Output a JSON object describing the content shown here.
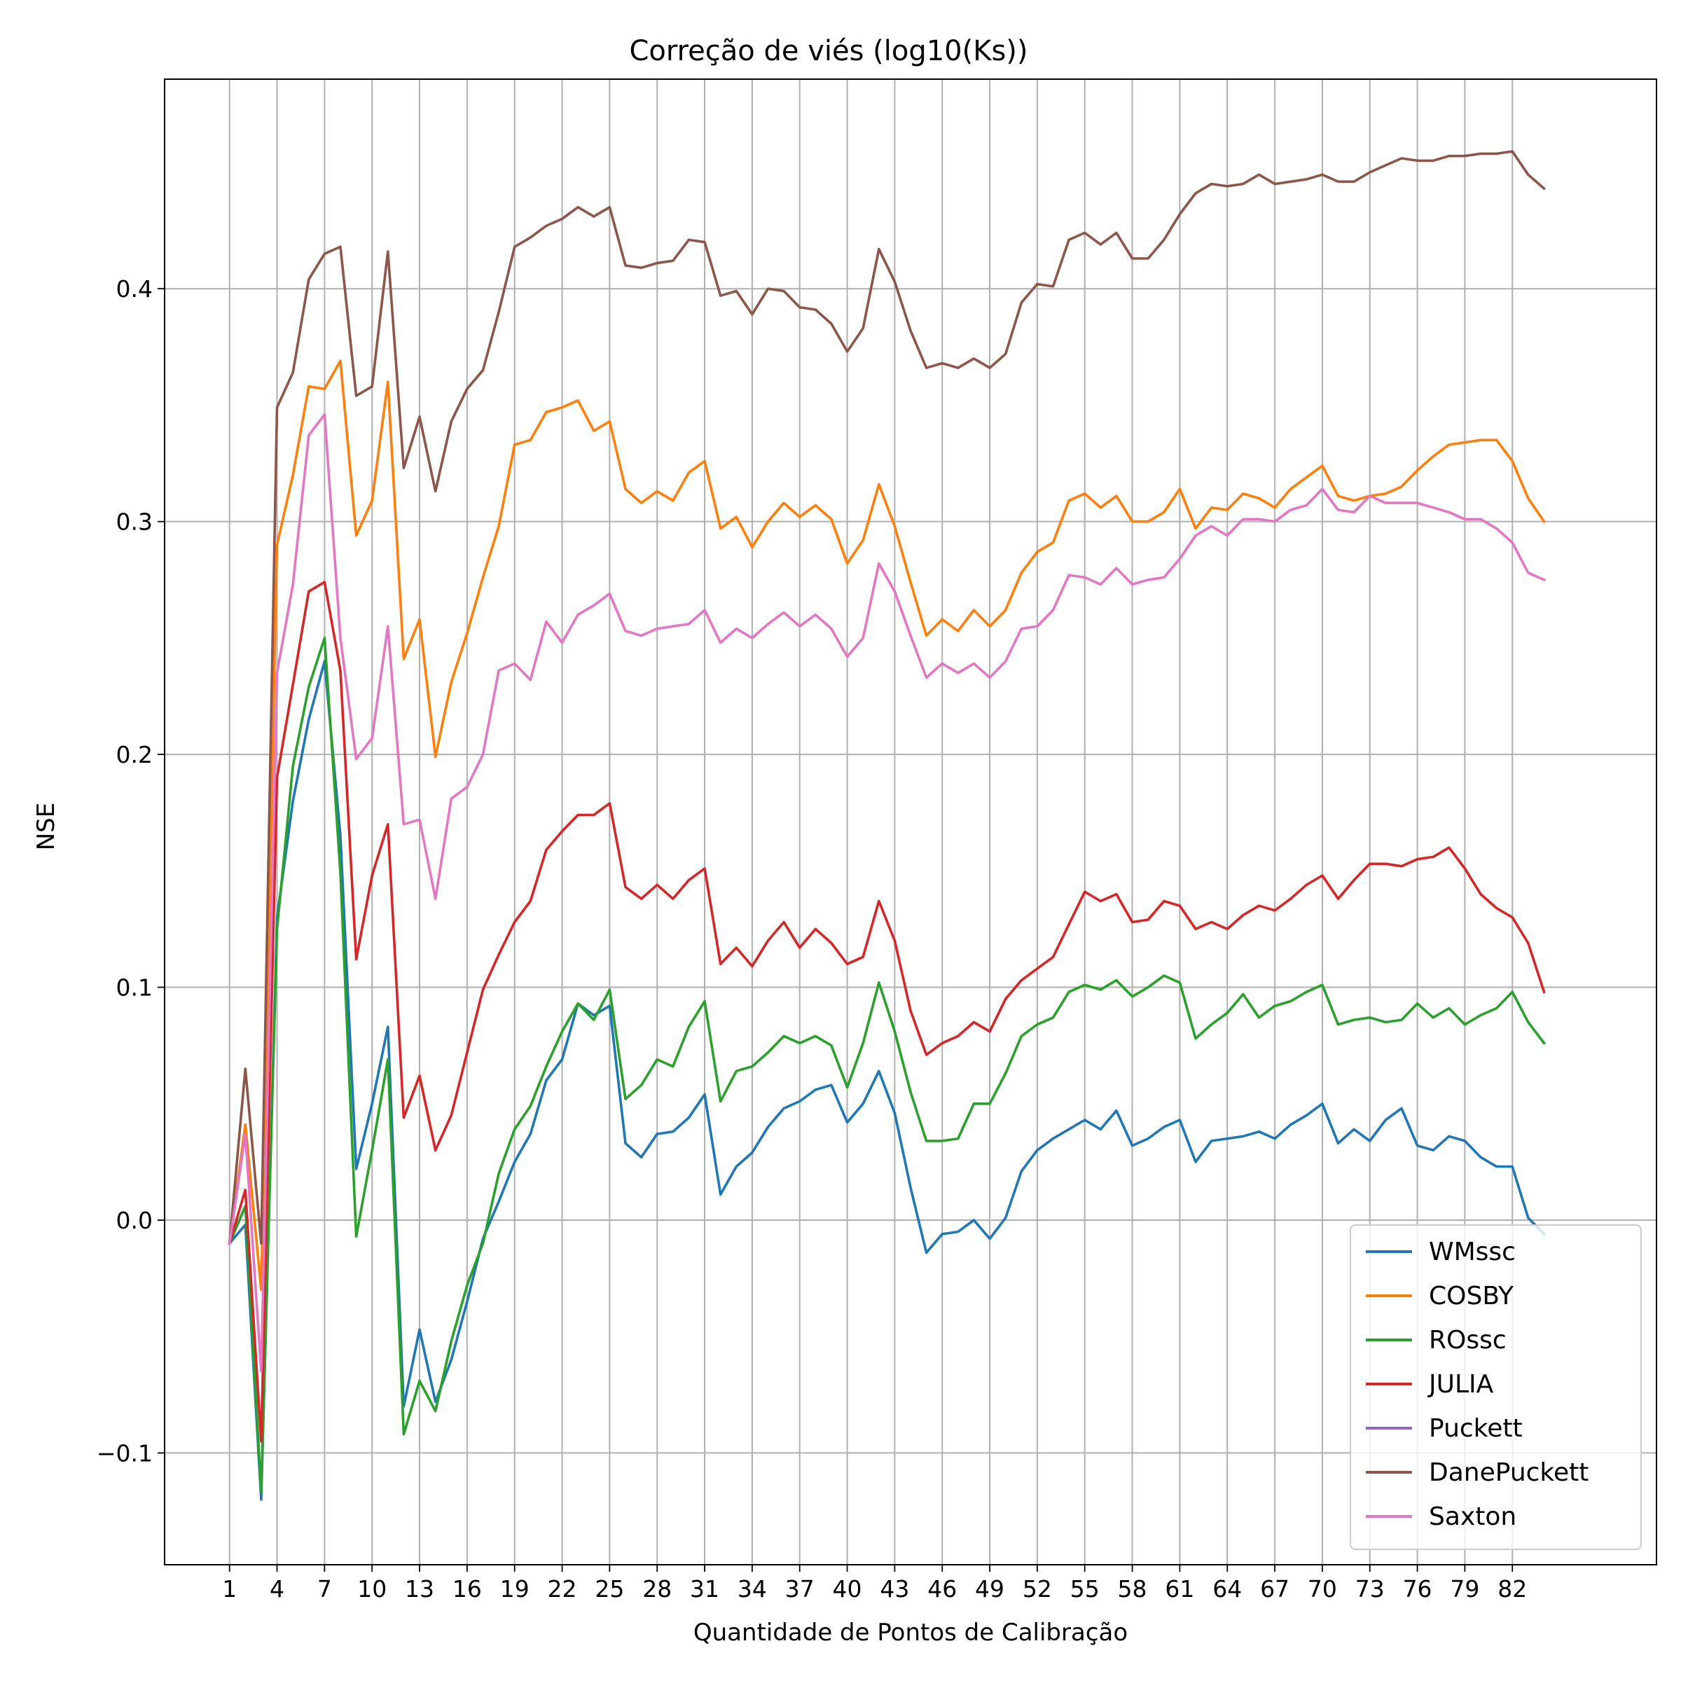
{
  "chart_data": {
    "type": "line",
    "title": "Correção de viés (log10(Ks))",
    "xlabel": "Quantidade de Pontos de Calibração",
    "ylabel": "NSE",
    "xlim": [
      -3.1,
      91.1
    ],
    "ylim": [
      -0.148,
      0.49
    ],
    "x_ticks": [
      1,
      4,
      7,
      10,
      13,
      16,
      19,
      22,
      25,
      28,
      31,
      34,
      37,
      40,
      43,
      46,
      49,
      52,
      55,
      58,
      61,
      64,
      67,
      70,
      73,
      76,
      79,
      82
    ],
    "y_ticks": [
      {
        "value": -0.1,
        "label": "−0.1"
      },
      {
        "value": 0.0,
        "label": "0.0"
      },
      {
        "value": 0.1,
        "label": "0.1"
      },
      {
        "value": 0.2,
        "label": "0.2"
      },
      {
        "value": 0.3,
        "label": "0.3"
      },
      {
        "value": 0.4,
        "label": "0.4"
      }
    ],
    "grid": true,
    "legend_position": "lower-right",
    "x_start": 1,
    "series": [
      {
        "name": "WMssc",
        "color": "#1f77b4",
        "values": [
          -0.01,
          -0.002,
          -0.12,
          0.13,
          0.18,
          0.215,
          0.24,
          0.165,
          0.022,
          0.05,
          0.083,
          -0.08,
          -0.047,
          -0.078,
          -0.06,
          -0.035,
          -0.008,
          0.008,
          0.025,
          0.037,
          0.06,
          0.069,
          0.093,
          0.088,
          0.092,
          0.033,
          0.027,
          0.037,
          0.038,
          0.044,
          0.054,
          0.011,
          0.023,
          0.029,
          0.04,
          0.048,
          0.051,
          0.056,
          0.058,
          0.042,
          0.05,
          0.064,
          0.046,
          0.014,
          -0.014,
          -0.006,
          -0.005,
          0.0,
          -0.008,
          0.001,
          0.021,
          0.03,
          0.035,
          0.039,
          0.043,
          0.039,
          0.047,
          0.032,
          0.035,
          0.04,
          0.043,
          0.025,
          0.034,
          0.035,
          0.036,
          0.038,
          0.035,
          0.041,
          0.045,
          0.05,
          0.033,
          0.039,
          0.034,
          0.043,
          0.048,
          0.032,
          0.03,
          0.036,
          0.034,
          0.027,
          0.023,
          0.023,
          0.001,
          -0.006
        ]
      },
      {
        "name": "COSBY",
        "color": "#ff7f0e",
        "values": [
          -0.01,
          0.041,
          -0.03,
          0.29,
          0.32,
          0.358,
          0.357,
          0.369,
          0.294,
          0.309,
          0.36,
          0.241,
          0.258,
          0.199,
          0.231,
          0.252,
          0.276,
          0.298,
          0.333,
          0.335,
          0.347,
          0.349,
          0.352,
          0.339,
          0.343,
          0.314,
          0.308,
          0.313,
          0.309,
          0.321,
          0.326,
          0.297,
          0.302,
          0.289,
          0.3,
          0.308,
          0.302,
          0.307,
          0.301,
          0.282,
          0.292,
          0.316,
          0.298,
          0.274,
          0.251,
          0.258,
          0.253,
          0.262,
          0.255,
          0.262,
          0.278,
          0.287,
          0.291,
          0.309,
          0.312,
          0.306,
          0.311,
          0.3,
          0.3,
          0.304,
          0.314,
          0.297,
          0.306,
          0.305,
          0.312,
          0.31,
          0.306,
          0.314,
          0.319,
          0.324,
          0.311,
          0.309,
          0.311,
          0.312,
          0.315,
          0.322,
          0.328,
          0.333,
          0.334,
          0.335,
          0.335,
          0.326,
          0.31,
          0.3
        ]
      },
      {
        "name": "ROssc",
        "color": "#2ca02c",
        "values": [
          -0.01,
          0.006,
          -0.117,
          0.125,
          0.195,
          0.229,
          0.25,
          0.149,
          -0.007,
          0.03,
          0.069,
          -0.092,
          -0.069,
          -0.082,
          -0.052,
          -0.028,
          -0.01,
          0.02,
          0.039,
          0.049,
          0.066,
          0.081,
          0.093,
          0.086,
          0.099,
          0.052,
          0.058,
          0.069,
          0.066,
          0.083,
          0.094,
          0.051,
          0.064,
          0.066,
          0.072,
          0.079,
          0.076,
          0.079,
          0.075,
          0.057,
          0.076,
          0.102,
          0.081,
          0.055,
          0.034,
          0.034,
          0.035,
          0.05,
          0.05,
          0.063,
          0.079,
          0.084,
          0.087,
          0.098,
          0.101,
          0.099,
          0.103,
          0.096,
          0.1,
          0.105,
          0.102,
          0.078,
          0.084,
          0.089,
          0.097,
          0.087,
          0.092,
          0.094,
          0.098,
          0.101,
          0.084,
          0.086,
          0.087,
          0.085,
          0.086,
          0.093,
          0.087,
          0.091,
          0.084,
          0.088,
          0.091,
          0.098,
          0.085,
          0.076
        ]
      },
      {
        "name": "JULIA",
        "color": "#d62728",
        "values": [
          -0.01,
          0.013,
          -0.095,
          0.19,
          0.23,
          0.27,
          0.274,
          0.236,
          0.112,
          0.148,
          0.17,
          0.044,
          0.062,
          0.03,
          0.045,
          0.072,
          0.099,
          0.114,
          0.128,
          0.137,
          0.159,
          0.167,
          0.174,
          0.174,
          0.179,
          0.143,
          0.138,
          0.144,
          0.138,
          0.146,
          0.151,
          0.11,
          0.117,
          0.109,
          0.12,
          0.128,
          0.117,
          0.125,
          0.119,
          0.11,
          0.113,
          0.137,
          0.12,
          0.09,
          0.071,
          0.076,
          0.079,
          0.085,
          0.081,
          0.095,
          0.103,
          0.108,
          0.113,
          0.127,
          0.141,
          0.137,
          0.14,
          0.128,
          0.129,
          0.137,
          0.135,
          0.125,
          0.128,
          0.125,
          0.131,
          0.135,
          0.133,
          0.138,
          0.144,
          0.148,
          0.138,
          0.146,
          0.153,
          0.153,
          0.152,
          0.155,
          0.156,
          0.16,
          0.151,
          0.14,
          0.134,
          0.13,
          0.119,
          0.098
        ]
      },
      {
        "name": "Puckett",
        "color": "#9467bd",
        "values": []
      },
      {
        "name": "DanePuckett",
        "color": "#8c564b",
        "values": [
          -0.01,
          0.065,
          -0.01,
          0.349,
          0.364,
          0.404,
          0.415,
          0.418,
          0.354,
          0.358,
          0.416,
          0.323,
          0.345,
          0.313,
          0.343,
          0.357,
          0.365,
          0.39,
          0.418,
          0.422,
          0.427,
          0.43,
          0.435,
          0.431,
          0.435,
          0.41,
          0.409,
          0.411,
          0.412,
          0.421,
          0.42,
          0.397,
          0.399,
          0.389,
          0.4,
          0.399,
          0.392,
          0.391,
          0.385,
          0.373,
          0.383,
          0.417,
          0.403,
          0.382,
          0.366,
          0.368,
          0.366,
          0.37,
          0.366,
          0.372,
          0.394,
          0.402,
          0.401,
          0.421,
          0.424,
          0.419,
          0.424,
          0.413,
          0.413,
          0.421,
          0.432,
          0.441,
          0.445,
          0.444,
          0.445,
          0.449,
          0.445,
          0.446,
          0.447,
          0.449,
          0.446,
          0.446,
          0.45,
          0.453,
          0.456,
          0.455,
          0.455,
          0.457,
          0.457,
          0.458,
          0.458,
          0.459,
          0.449,
          0.443
        ]
      },
      {
        "name": "Saxton",
        "color": "#e377c2",
        "values": [
          -0.01,
          0.037,
          -0.065,
          0.235,
          0.273,
          0.337,
          0.346,
          0.25,
          0.198,
          0.207,
          0.255,
          0.17,
          0.172,
          0.138,
          0.181,
          0.186,
          0.2,
          0.236,
          0.239,
          0.232,
          0.257,
          0.248,
          0.26,
          0.264,
          0.269,
          0.253,
          0.251,
          0.254,
          0.255,
          0.256,
          0.262,
          0.248,
          0.254,
          0.25,
          0.256,
          0.261,
          0.255,
          0.26,
          0.254,
          0.242,
          0.25,
          0.282,
          0.27,
          0.251,
          0.233,
          0.239,
          0.235,
          0.239,
          0.233,
          0.24,
          0.254,
          0.255,
          0.262,
          0.277,
          0.276,
          0.273,
          0.28,
          0.273,
          0.275,
          0.276,
          0.284,
          0.294,
          0.298,
          0.294,
          0.301,
          0.301,
          0.3,
          0.305,
          0.307,
          0.314,
          0.305,
          0.304,
          0.311,
          0.308,
          0.308,
          0.308,
          0.306,
          0.304,
          0.301,
          0.301,
          0.297,
          0.291,
          0.278,
          0.275
        ]
      }
    ]
  }
}
